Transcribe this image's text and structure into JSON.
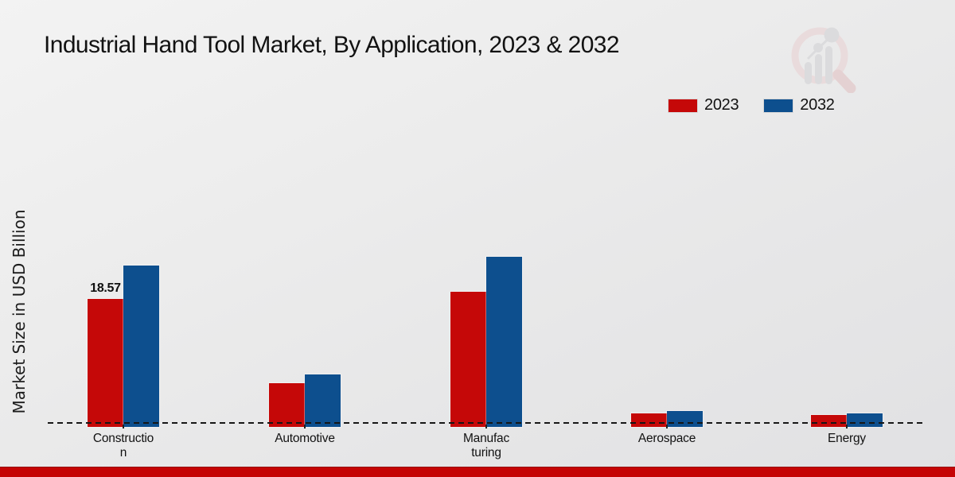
{
  "header": {
    "title": "Industrial Hand Tool Market, By Application, 2023 & 2032"
  },
  "legend": {
    "items": [
      {
        "label": "2023",
        "color": "#c50808"
      },
      {
        "label": "2032",
        "color": "#0d4f8e"
      }
    ]
  },
  "watermark_icon": "magnifier-bar-chart-logo",
  "chart_data": {
    "type": "bar",
    "title": "Industrial Hand Tool Market, By Application, 2023 & 2032",
    "xlabel": "",
    "ylabel": "Market Size in USD Billion",
    "categories": [
      "Construction",
      "Automotive",
      "Manufacturing",
      "Aerospace",
      "Energy"
    ],
    "categories_display": [
      "Constructio\nn",
      "Automotive",
      "Manufac\nturing",
      "Aerospace",
      "Energy"
    ],
    "series": [
      {
        "name": "2023",
        "color": "#c50808",
        "values": [
          18.57,
          6.0,
          19.6,
          1.5,
          1.3
        ]
      },
      {
        "name": "2032",
        "color": "#0d4f8e",
        "values": [
          23.5,
          7.3,
          24.8,
          1.9,
          1.5
        ]
      }
    ],
    "bar_labels": [
      [
        "18.57",
        null,
        null,
        null,
        null
      ],
      [
        null,
        null,
        null,
        null,
        null
      ]
    ],
    "ylim": [
      0,
      33
    ],
    "grid": false,
    "legend_position": "top-right",
    "y_ticks_visible": false
  },
  "footer": {
    "band_color": "#c50404"
  }
}
